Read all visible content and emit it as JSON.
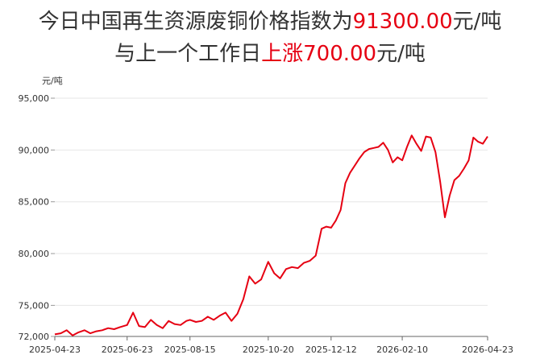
{
  "header": {
    "line1_prefix": "今日中国再生资源废铜价格指数为",
    "line1_value": "91300.00",
    "line1_suffix": "元/吨",
    "line2_prefix": "与上一个工作日",
    "line2_change": "上涨700.00",
    "line2_suffix": "元/吨"
  },
  "chart_data": {
    "type": "line",
    "ylabel": "元/吨",
    "ylim": [
      72000,
      95000
    ],
    "yticks": [
      "95,000",
      "90,000",
      "85,000",
      "80,000",
      "75,000",
      "72,000"
    ],
    "ytick_values": [
      95000,
      90000,
      85000,
      80000,
      75000,
      72000
    ],
    "xticks": [
      "2025-04-23",
      "2025-06-23",
      "2025-08-15",
      "2025-10-20",
      "2025-12-12",
      "2026-02-10",
      "2026-04-23"
    ],
    "grid": true,
    "line_color": "#e60012",
    "series": [
      {
        "x": [
          "2025-04-23",
          "2025-04-28",
          "2025-05-03",
          "2025-05-08",
          "2025-05-13",
          "2025-05-18",
          "2025-05-23",
          "2025-05-28",
          "2025-06-02",
          "2025-06-07",
          "2025-06-12",
          "2025-06-17",
          "2025-06-23",
          "2025-06-28",
          "2025-07-03",
          "2025-07-08",
          "2025-07-13",
          "2025-07-18",
          "2025-07-23",
          "2025-07-28",
          "2025-08-02",
          "2025-08-07",
          "2025-08-12",
          "2025-08-15",
          "2025-08-20",
          "2025-08-25",
          "2025-08-30",
          "2025-09-04",
          "2025-09-09",
          "2025-09-14",
          "2025-09-19",
          "2025-09-24",
          "2025-09-29",
          "2025-10-04",
          "2025-10-09",
          "2025-10-14",
          "2025-10-20",
          "2025-10-25",
          "2025-10-30",
          "2025-11-04",
          "2025-11-09",
          "2025-11-14",
          "2025-11-19",
          "2025-11-24",
          "2025-11-29",
          "2025-12-04",
          "2025-12-08",
          "2025-12-12",
          "2025-12-16",
          "2025-12-20",
          "2025-12-24",
          "2025-12-28",
          "2026-01-01",
          "2026-01-05",
          "2026-01-09",
          "2026-01-13",
          "2026-01-17",
          "2026-01-21",
          "2026-01-25",
          "2026-01-29",
          "2026-02-02",
          "2026-02-06",
          "2026-02-10",
          "2026-02-14",
          "2026-02-18",
          "2026-02-22",
          "2026-02-26",
          "2026-03-02",
          "2026-03-06",
          "2026-03-10",
          "2026-03-14",
          "2026-03-18",
          "2026-03-22",
          "2026-03-26",
          "2026-03-30",
          "2026-04-03",
          "2026-04-07",
          "2026-04-11",
          "2026-04-15",
          "2026-04-19",
          "2026-04-23"
        ],
        "values": [
          72200,
          72300,
          72600,
          72100,
          72400,
          72600,
          72300,
          72500,
          72600,
          72800,
          72700,
          72900,
          73100,
          74300,
          73000,
          72900,
          73600,
          73100,
          72800,
          73500,
          73200,
          73100,
          73500,
          73600,
          73400,
          73500,
          73900,
          73600,
          74000,
          74300,
          73500,
          74200,
          75600,
          77800,
          77100,
          77500,
          79200,
          78100,
          77600,
          78500,
          78700,
          78600,
          79100,
          79300,
          79800,
          82400,
          82600,
          82500,
          83200,
          84200,
          86800,
          87800,
          88500,
          89200,
          89800,
          90100,
          90200,
          90300,
          90700,
          90000,
          88800,
          89300,
          89000,
          90300,
          91400,
          90600,
          89900,
          91300,
          91200,
          89800,
          86900,
          83500,
          85600,
          87100,
          87500,
          88200,
          89000,
          91200,
          90800,
          90600,
          91300
        ]
      }
    ]
  }
}
